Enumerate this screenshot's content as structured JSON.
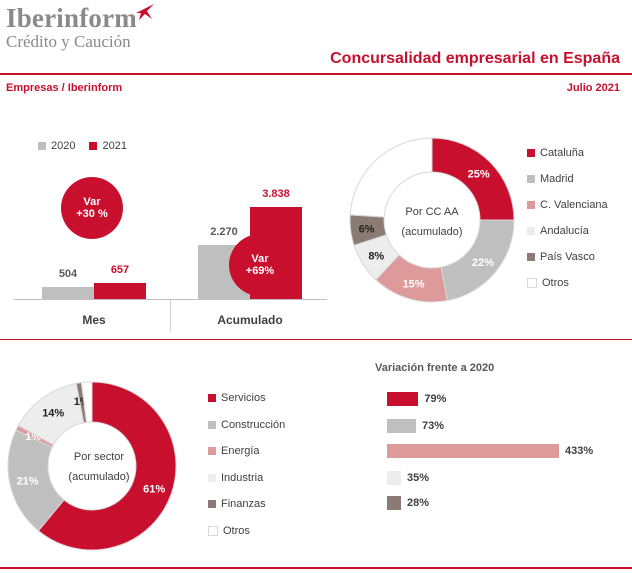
{
  "header": {
    "brand": "Iberinform",
    "brand_sub": "Crédito y Caución",
    "title": "Concursalidad empresarial en España",
    "source": "Empresas / Iberinform",
    "date": "Julio 2021"
  },
  "colors": {
    "accent": "#c8102e",
    "gray": "#bfbfbf",
    "pink": "#de9a9a",
    "lightgray": "#ededed",
    "taupe": "#8c7b75",
    "white": "#ffffff"
  },
  "chart_data": [
    {
      "type": "bar",
      "title": "",
      "categories": [
        "Mes",
        "Acumulado"
      ],
      "series": [
        {
          "name": "2020",
          "values": [
            504,
            2270
          ],
          "labels": [
            "504",
            "2.270"
          ],
          "color": "#bfbfbf"
        },
        {
          "name": "2021",
          "values": [
            657,
            3838
          ],
          "labels": [
            "657",
            "3.838"
          ],
          "color": "#c8102e"
        }
      ],
      "ylim": [
        0,
        4300
      ],
      "annotations": [
        {
          "title": "Var",
          "value": "+30 %"
        },
        {
          "title": "Var",
          "value": "+69%"
        }
      ]
    },
    {
      "type": "pie",
      "title": "Por CC AA (acumulado)",
      "center_lines": [
        "Por CC AA",
        "(acumulado)"
      ],
      "labels": [
        "Cataluña",
        "Madrid",
        "C. Valenciana",
        "Andalucía",
        "País Vasco",
        "Otros"
      ],
      "values": [
        25,
        22,
        15,
        8,
        6,
        24
      ],
      "value_labels": [
        "25%",
        "22%",
        "15%",
        "8%",
        "6%",
        ""
      ],
      "colors": [
        "#c8102e",
        "#bfbfbf",
        "#de9a9a",
        "#ededed",
        "#8c7b75",
        "#ffffff"
      ],
      "legend_position": "right"
    },
    {
      "type": "pie",
      "title": "Por sector (acumulado)",
      "center_lines": [
        "Por sector",
        "(acumulado)"
      ],
      "labels": [
        "Servicios",
        "Construcción",
        "Energía",
        "Industria",
        "Finanzas",
        "Otros"
      ],
      "values": [
        61,
        21,
        1,
        14,
        1,
        2
      ],
      "value_labels": [
        "61%",
        "21%",
        "1%",
        "14%",
        "1%",
        ""
      ],
      "colors": [
        "#c8102e",
        "#bfbfbf",
        "#de9a9a",
        "#ededed",
        "#8c7b75",
        "#ffffff"
      ],
      "legend_position": "right"
    },
    {
      "type": "bar",
      "orientation": "horizontal",
      "title": "Variación frente a 2020",
      "categories": [
        "Servicios",
        "Construcción",
        "Energía",
        "Industria",
        "Finanzas"
      ],
      "values": [
        79,
        73,
        433,
        35,
        28
      ],
      "value_labels": [
        "79%",
        "73%",
        "433%",
        "35%",
        "28%"
      ],
      "colors": [
        "#c8102e",
        "#bfbfbf",
        "#de9a9a",
        "#ededed",
        "#8c7b75"
      ],
      "xlim": [
        0,
        433
      ]
    }
  ]
}
